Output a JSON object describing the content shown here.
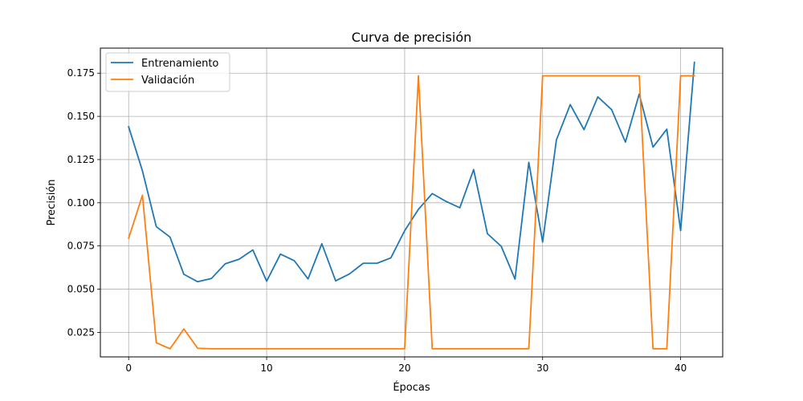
{
  "chart_data": {
    "type": "line",
    "title": "Curva de precisión",
    "xlabel": "Épocas",
    "ylabel": "Precisión",
    "xlim": [
      -2.05,
      43.05
    ],
    "ylim": [
      0.0108,
      0.1895
    ],
    "xticks": [
      0,
      10,
      20,
      30,
      40
    ],
    "yticks": [
      0.025,
      0.05,
      0.075,
      0.1,
      0.125,
      0.15,
      0.175
    ],
    "ytick_labels": [
      "0.025",
      "0.050",
      "0.075",
      "0.100",
      "0.125",
      "0.150",
      "0.175"
    ],
    "grid": true,
    "legend_position": "top-left",
    "x": [
      0,
      1,
      2,
      3,
      4,
      5,
      6,
      7,
      8,
      9,
      10,
      11,
      12,
      13,
      14,
      15,
      16,
      17,
      18,
      19,
      20,
      21,
      22,
      23,
      24,
      25,
      26,
      27,
      28,
      29,
      30,
      31,
      32,
      33,
      34,
      35,
      36,
      37,
      38,
      39,
      40,
      41
    ],
    "series": [
      {
        "name": "Entrenamiento",
        "color": "#1f77b4",
        "values": [
          0.144,
          0.1184,
          0.0862,
          0.0801,
          0.0586,
          0.0543,
          0.0562,
          0.0647,
          0.0673,
          0.0727,
          0.0546,
          0.0703,
          0.0665,
          0.0559,
          0.0763,
          0.0548,
          0.0588,
          0.065,
          0.065,
          0.0681,
          0.0838,
          0.0962,
          0.1053,
          0.1008,
          0.0971,
          0.1192,
          0.0821,
          0.0748,
          0.0558,
          0.1234,
          0.0773,
          0.1364,
          0.1568,
          0.1423,
          0.1613,
          0.1539,
          0.1351,
          0.1629,
          0.1322,
          0.1426,
          0.0839,
          0.1813
        ]
      },
      {
        "name": "Validación",
        "color": "#ff7f0e",
        "values": [
          0.0795,
          0.1044,
          0.019,
          0.0155,
          0.027,
          0.0158,
          0.0155,
          0.0155,
          0.0155,
          0.0155,
          0.0155,
          0.0155,
          0.0155,
          0.0155,
          0.0155,
          0.0155,
          0.0155,
          0.0155,
          0.0155,
          0.0155,
          0.0155,
          0.1735,
          0.0155,
          0.0155,
          0.0155,
          0.0155,
          0.0155,
          0.0155,
          0.0155,
          0.0155,
          0.1735,
          0.1735,
          0.1735,
          0.1735,
          0.1735,
          0.1735,
          0.1735,
          0.1735,
          0.0155,
          0.0155,
          0.1735,
          0.1735
        ]
      }
    ]
  }
}
